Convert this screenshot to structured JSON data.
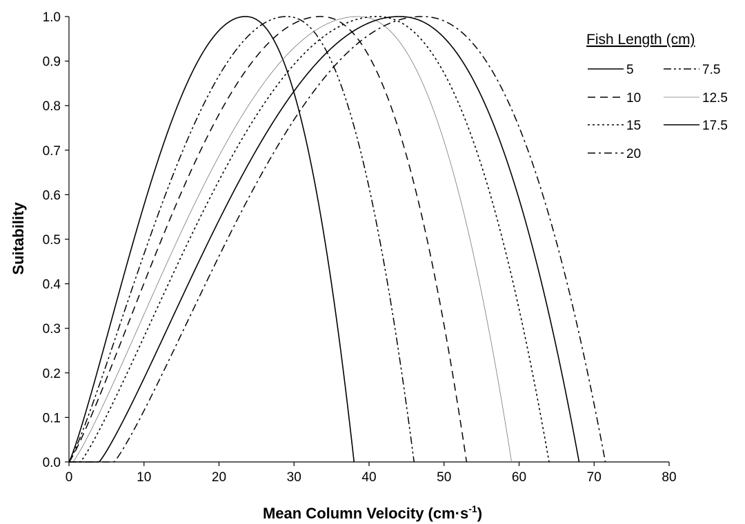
{
  "chart_data": {
    "type": "line",
    "xlabel": "Mean Column Velocity (cm·s⁻¹)",
    "xlabel_main": "Mean Column Velocity (cm·s",
    "xlabel_sup": "-1",
    "xlabel_close": ")",
    "ylabel": "Suitability",
    "xlim": [
      0,
      80
    ],
    "ylim": [
      0.0,
      1.0
    ],
    "x_ticks": [
      0,
      10,
      20,
      30,
      40,
      50,
      60,
      70,
      80
    ],
    "x_tick_labels": [
      "0",
      "10",
      "20",
      "30",
      "40",
      "50",
      "60",
      "70",
      "80"
    ],
    "y_ticks": [
      0.0,
      0.1,
      0.2,
      0.3,
      0.4,
      0.5,
      0.6,
      0.7,
      0.8,
      0.9,
      1.0
    ],
    "y_tick_labels": [
      "0.0",
      "0.1",
      "0.2",
      "0.3",
      "0.4",
      "0.5",
      "0.6",
      "0.7",
      "0.8",
      "0.9",
      "1.0"
    ],
    "grid": false,
    "legend_title": "Fish Length (cm)",
    "legend_position": "top-right",
    "series": [
      {
        "name": "5",
        "style": "solid",
        "start": 0.0,
        "peak": 23.5,
        "end": 38.0
      },
      {
        "name": "7.5",
        "style": "dashdotdot",
        "start": 0.0,
        "peak": 29.0,
        "end": 46.0
      },
      {
        "name": "10",
        "style": "dashed",
        "start": 0.0,
        "peak": 33.5,
        "end": 53.0
      },
      {
        "name": "12.5",
        "style": "thin-solid",
        "start": 0.5,
        "peak": 38.5,
        "end": 59.0
      },
      {
        "name": "15",
        "style": "dotted",
        "start": 1.5,
        "peak": 41.0,
        "end": 64.0
      },
      {
        "name": "17.5",
        "style": "solid",
        "start": 4.0,
        "peak": 44.0,
        "end": 68.0
      },
      {
        "name": "20",
        "style": "dashdot",
        "start": 6.0,
        "peak": 47.0,
        "end": 71.5
      }
    ]
  }
}
